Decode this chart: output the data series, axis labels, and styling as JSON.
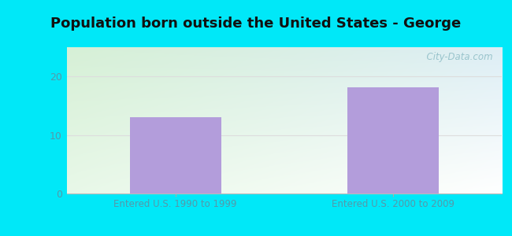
{
  "title": "Population born outside the United States - George",
  "categories": [
    "Entered U.S. 1990 to 1999",
    "Entered U.S. 2000 to 2009"
  ],
  "values": [
    13.0,
    18.2
  ],
  "bar_color": "#b39ddb",
  "bar_width": 0.42,
  "ylim": [
    0,
    25
  ],
  "yticks": [
    0,
    10,
    20
  ],
  "outer_bg": "#00e8f8",
  "plot_bg_top_left": "#d6f0d6",
  "plot_bg_right": "#e8f4f8",
  "plot_bg_bottom": "#f0faf0",
  "title_fontsize": 13,
  "tick_label_color": "#5599aa",
  "watermark_text": "  City-Data.com",
  "watermark_color": "#99c4cc",
  "grid_color": "#dddddd"
}
